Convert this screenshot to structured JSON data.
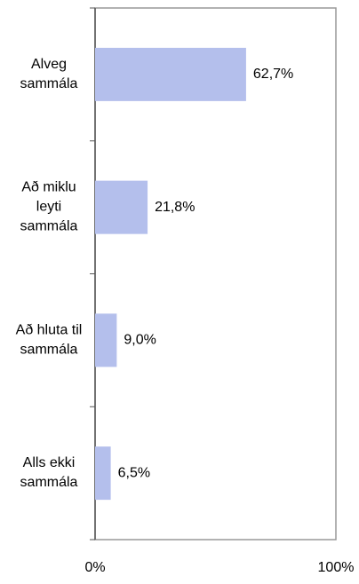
{
  "chart_data": {
    "type": "bar",
    "orientation": "horizontal",
    "categories": [
      [
        "Alveg",
        "sammála"
      ],
      [
        "Að miklu",
        "leyti",
        "sammála"
      ],
      [
        "Að hluta til",
        "sammála"
      ],
      [
        "Alls ekki",
        "sammála"
      ]
    ],
    "values": [
      62.7,
      21.8,
      9.0,
      6.5
    ],
    "value_labels": [
      "62,7%",
      "21,8%",
      "9,0%",
      "6,5%"
    ],
    "color": "#b4bfec",
    "xlim": [
      0,
      100
    ],
    "xticks": [
      {
        "value": 0,
        "label": "0%"
      },
      {
        "value": 100,
        "label": "100%"
      }
    ]
  }
}
